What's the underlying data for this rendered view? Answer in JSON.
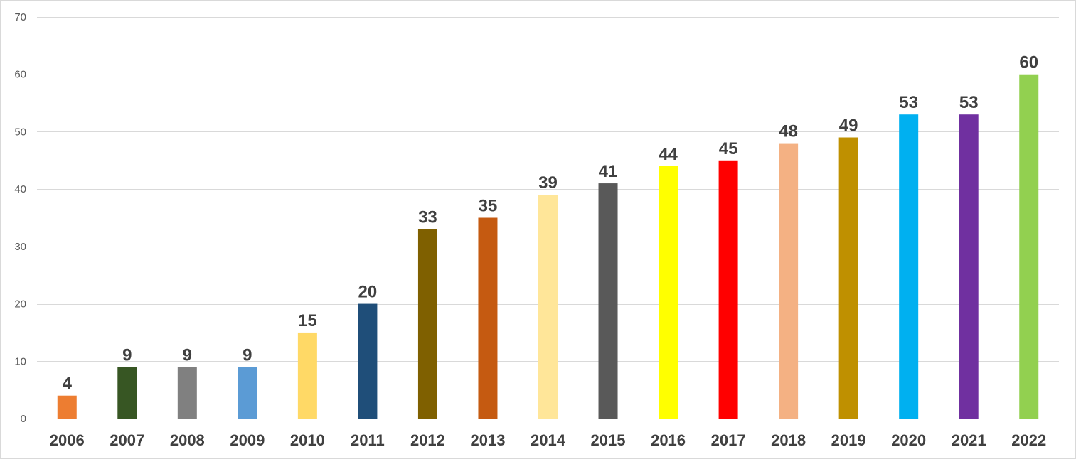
{
  "chart_data": {
    "type": "bar",
    "categories": [
      "2006",
      "2007",
      "2008",
      "2009",
      "2010",
      "2011",
      "2012",
      "2013",
      "2014",
      "2015",
      "2016",
      "2017",
      "2018",
      "2019",
      "2020",
      "2021",
      "2022"
    ],
    "values": [
      4,
      9,
      9,
      9,
      15,
      20,
      33,
      35,
      39,
      41,
      44,
      45,
      48,
      49,
      53,
      53,
      60
    ],
    "colors": [
      "#ED7D31",
      "#375623",
      "#808080",
      "#5B9BD5",
      "#FFD966",
      "#1F4E79",
      "#7F6000",
      "#C55A11",
      "#FFE699",
      "#595959",
      "#FFFF00",
      "#FF0000",
      "#F4B183",
      "#BF9000",
      "#00B0F0",
      "#7030A0",
      "#92D050"
    ],
    "title": "",
    "xlabel": "",
    "ylabel": "",
    "ylim": [
      0,
      70
    ],
    "yticks": [
      0,
      10,
      20,
      30,
      40,
      50,
      60,
      70
    ],
    "grid": true,
    "legend": "none",
    "data_labels": true
  }
}
